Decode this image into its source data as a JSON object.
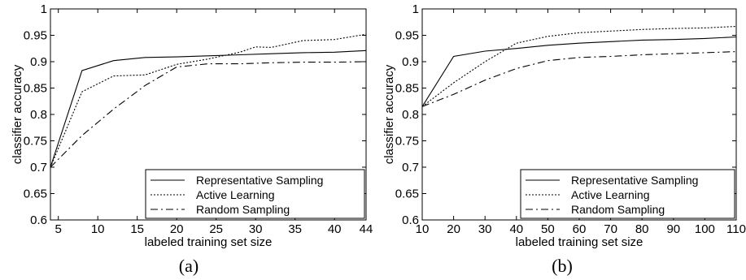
{
  "chart_data": [
    {
      "type": "line",
      "caption": "(a)",
      "xlabel": "labeled training set size",
      "ylabel": "classifier accuracy",
      "xlim": [
        4,
        44
      ],
      "ylim": [
        0.6,
        1.0
      ],
      "xticks": [
        5,
        10,
        15,
        20,
        25,
        30,
        35,
        40,
        44
      ],
      "yticks": [
        0.6,
        0.65,
        0.7,
        0.75,
        0.8,
        0.85,
        0.9,
        0.95,
        1
      ],
      "ytick_labels": [
        "0.6",
        "0.65",
        "0.7",
        "0.75",
        "0.8",
        "0.85",
        "0.9",
        "0.95",
        "1"
      ],
      "legend_position": "bottom-right",
      "series": [
        {
          "name": "Representative Sampling",
          "style": "solid",
          "x": [
            4,
            8,
            12,
            16,
            20,
            24,
            28,
            32,
            36,
            40,
            44
          ],
          "y": [
            0.7,
            0.883,
            0.902,
            0.908,
            0.909,
            0.911,
            0.913,
            0.915,
            0.917,
            0.918,
            0.921
          ]
        },
        {
          "name": "Active Learning",
          "style": "dotted",
          "x": [
            4,
            8,
            12,
            16,
            20,
            24,
            28,
            30,
            32,
            36,
            40,
            44
          ],
          "y": [
            0.7,
            0.843,
            0.873,
            0.875,
            0.895,
            0.905,
            0.918,
            0.928,
            0.927,
            0.94,
            0.942,
            0.952
          ]
        },
        {
          "name": "Random Sampling",
          "style": "dashdot",
          "x": [
            4,
            8,
            12,
            16,
            20,
            24,
            28,
            32,
            36,
            40,
            44
          ],
          "y": [
            0.7,
            0.76,
            0.81,
            0.855,
            0.89,
            0.896,
            0.896,
            0.898,
            0.899,
            0.899,
            0.9
          ]
        }
      ]
    },
    {
      "type": "line",
      "caption": "(b)",
      "xlabel": "labeled training set size",
      "ylabel": "classifier accuracy",
      "xlim": [
        10,
        110
      ],
      "ylim": [
        0.6,
        1.0
      ],
      "xticks": [
        10,
        20,
        30,
        40,
        50,
        60,
        70,
        80,
        90,
        100,
        110
      ],
      "yticks": [
        0.6,
        0.65,
        0.7,
        0.75,
        0.8,
        0.85,
        0.9,
        0.95,
        1
      ],
      "ytick_labels": [
        "0.6",
        "0.65",
        "0.7",
        "0.75",
        "0.8",
        "0.85",
        "0.9",
        "0.95",
        "1"
      ],
      "legend_position": "bottom-right",
      "series": [
        {
          "name": "Representative Sampling",
          "style": "solid",
          "x": [
            10,
            20,
            30,
            40,
            50,
            60,
            70,
            80,
            90,
            100,
            110
          ],
          "y": [
            0.815,
            0.91,
            0.92,
            0.925,
            0.931,
            0.935,
            0.938,
            0.941,
            0.942,
            0.944,
            0.947
          ]
        },
        {
          "name": "Active Learning",
          "style": "dotted",
          "x": [
            10,
            20,
            30,
            40,
            50,
            60,
            70,
            80,
            90,
            100,
            110
          ],
          "y": [
            0.815,
            0.86,
            0.9,
            0.935,
            0.948,
            0.955,
            0.958,
            0.961,
            0.963,
            0.964,
            0.967
          ]
        },
        {
          "name": "Random Sampling",
          "style": "dashdot",
          "x": [
            10,
            20,
            30,
            40,
            50,
            60,
            70,
            80,
            90,
            100,
            110
          ],
          "y": [
            0.815,
            0.838,
            0.865,
            0.887,
            0.902,
            0.908,
            0.91,
            0.913,
            0.915,
            0.917,
            0.919
          ]
        }
      ]
    }
  ]
}
